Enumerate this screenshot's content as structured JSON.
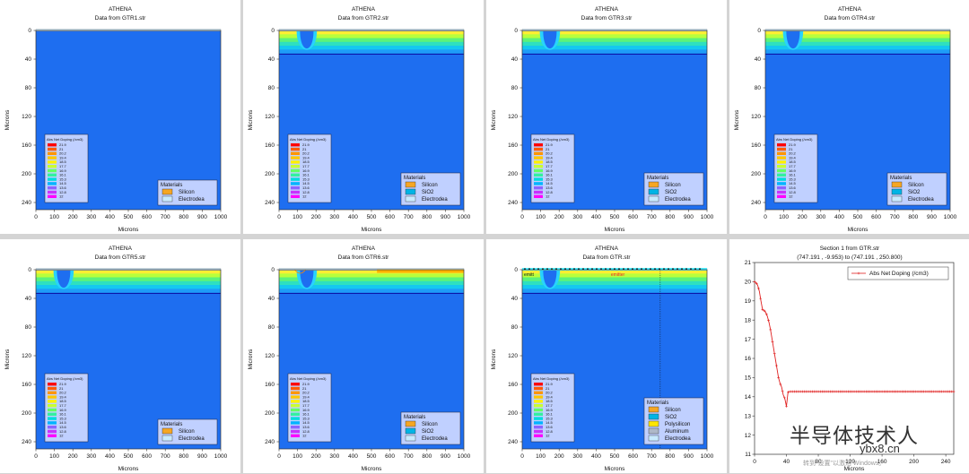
{
  "charts": [
    {
      "title": "ATHENA",
      "subtitle": "Data from GTR1.str",
      "xlabel": "Microns",
      "ylabel": "Microns",
      "materials": [
        "Silicon",
        "Electrodea"
      ],
      "well": false,
      "layer": "none",
      "legend": true
    },
    {
      "title": "ATHENA",
      "subtitle": "Data from GTR2.str",
      "xlabel": "Microns",
      "ylabel": "Microns",
      "materials": [
        "Silicon",
        "SiO2",
        "Electrodea"
      ],
      "well": true,
      "layer": "thin",
      "legend": true
    },
    {
      "title": "ATHENA",
      "subtitle": "Data from GTR3.str",
      "xlabel": "Microns",
      "ylabel": "Microns",
      "materials": [
        "Silicon",
        "SiO2",
        "Electrodea"
      ],
      "well": true,
      "layer": "thin",
      "legend": true
    },
    {
      "title": "ATHENA",
      "subtitle": "Data from GTR4.str",
      "xlabel": "Microns",
      "ylabel": "Microns",
      "materials": [
        "Silicon",
        "SiO2",
        "Electrodea"
      ],
      "well": true,
      "layer": "thin",
      "legend": true
    },
    {
      "title": "ATHENA",
      "subtitle": "Data from GTR5.str",
      "xlabel": "Microns",
      "ylabel": "Microns",
      "materials": [
        "Silicon",
        "Electrodea"
      ],
      "well": true,
      "layer": "thin",
      "legend": true
    },
    {
      "title": "ATHENA",
      "subtitle": "Data from GTR6.str",
      "xlabel": "Microns",
      "ylabel": "Microns",
      "materials": [
        "Silicon",
        "SiO2",
        "Electrodea"
      ],
      "well": true,
      "layer": "sio2",
      "legend": true
    },
    {
      "title": "ATHENA",
      "subtitle": "Data from GTR.str",
      "xlabel": "Microns",
      "ylabel": "Microns",
      "materials": [
        "Silicon",
        "SiO2",
        "Polysilicon",
        "Aluminum",
        "Electrodea"
      ],
      "well": true,
      "layer": "metal",
      "legend": true,
      "annotations": [
        "emitt",
        "emitter"
      ]
    }
  ],
  "contour_axes": {
    "x_ticks": [
      0,
      100,
      200,
      300,
      400,
      500,
      600,
      700,
      800,
      900,
      1000
    ],
    "y_ticks": [
      0,
      40,
      80,
      120,
      160,
      200,
      240
    ],
    "xlim": [
      0,
      1000
    ],
    "ylim": [
      0,
      250
    ]
  },
  "doping_legend": {
    "title": "Abs Net Doping (/cm3)",
    "levels": [
      "21.9",
      "21",
      "20.2",
      "19.4",
      "18.5",
      "17.7",
      "16.9",
      "16.1",
      "15.3",
      "14.5",
      "13.6",
      "12.8",
      "12"
    ]
  },
  "material_box_title": "Materials",
  "chart_data": {
    "type": "line",
    "title": "Section 1 from GTR.str",
    "subtitle": "(747.191 , -9.953) to (747.191 , 250.800)",
    "xlabel": "Microns",
    "ylabel": "",
    "xlim": [
      0,
      250
    ],
    "ylim": [
      11,
      21
    ],
    "x_ticks": [
      0,
      40,
      80,
      120,
      160,
      200,
      240
    ],
    "y_ticks": [
      11,
      12,
      13,
      14,
      15,
      16,
      17,
      18,
      19,
      20,
      21
    ],
    "x_tick_labels": [
      "0",
      "40",
      "80",
      "120",
      "160",
      "200",
      "240"
    ],
    "legend_placement": "top-right",
    "series": [
      {
        "name": "Abs Net Doping (/cm3)",
        "x": [
          0,
          2,
          4,
          6,
          8,
          10,
          12,
          14,
          16,
          18,
          20,
          22,
          24,
          26,
          28,
          30,
          32,
          34,
          36,
          38,
          40,
          42,
          44,
          46,
          48,
          50,
          60,
          80,
          100,
          120,
          140,
          160,
          180,
          200,
          220,
          240,
          250
        ],
        "y": [
          20.0,
          19.95,
          19.8,
          19.5,
          19.0,
          18.55,
          18.5,
          18.4,
          18.2,
          17.9,
          17.5,
          17.0,
          16.5,
          16.0,
          15.5,
          15.0,
          14.7,
          14.5,
          14.1,
          13.9,
          13.5,
          14.25,
          14.27,
          14.27,
          14.27,
          14.27,
          14.27,
          14.27,
          14.27,
          14.27,
          14.27,
          14.27,
          14.27,
          14.27,
          14.27,
          14.27,
          14.27
        ]
      }
    ]
  },
  "watermark": {
    "brand": "半导体技术人",
    "site": "ybx8.cn",
    "note": "转到\"设置\"以激活 Windows。"
  }
}
